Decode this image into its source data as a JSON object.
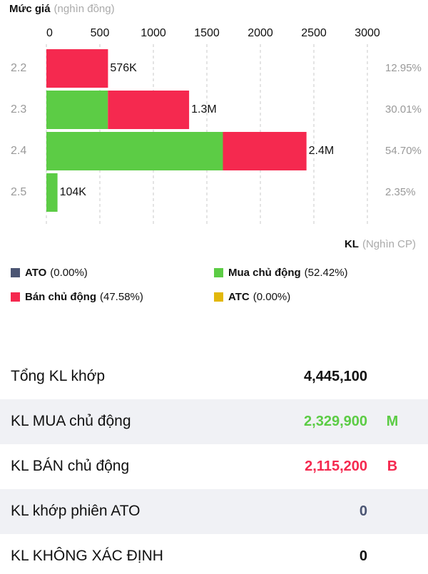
{
  "chart_data": {
    "type": "stacked-bar-horizontal",
    "y_label": {
      "title": "Mức giá",
      "unit": "(nghìn đồng)"
    },
    "x_label": {
      "title": "KL",
      "unit": "(Nghìn CP)"
    },
    "categories": [
      "2.2",
      "2.3",
      "2.4",
      "2.5"
    ],
    "xlim": [
      0,
      3000
    ],
    "xticks": [
      0,
      500,
      1000,
      1500,
      2000,
      2500,
      3000
    ],
    "grid": true,
    "series": [
      {
        "name": "ATO",
        "share_label": "(0.00%)",
        "color": "#4b5573",
        "values": [
          0,
          0,
          0,
          0
        ]
      },
      {
        "name": "Mua chủ động",
        "share_label": "(52.42%)",
        "color": "#5ccc45",
        "values": [
          0,
          575,
          1650,
          104
        ]
      },
      {
        "name": "Bán chủ động",
        "share_label": "(47.58%)",
        "color": "#f5294f",
        "values": [
          576,
          759,
          781,
          0
        ]
      },
      {
        "name": "ATC",
        "share_label": "(0.00%)",
        "color": "#e2b80b",
        "values": [
          0,
          0,
          0,
          0
        ]
      }
    ],
    "total_values": [
      576,
      1334,
      2431,
      104
    ],
    "total_value_labels": [
      "576K",
      "1.3M",
      "2.4M",
      "104K"
    ],
    "share_labels": [
      "12.95%",
      "30.01%",
      "54.70%",
      "2.35%"
    ]
  },
  "summary": {
    "rows": [
      {
        "label": "Tổng KL khớp",
        "value": "4,445,100",
        "color": "#111111"
      },
      {
        "label": "KL MUA chủ động",
        "value": "2,329,900",
        "suffix": "M",
        "color": "#5ccc45"
      },
      {
        "label": "KL BÁN chủ động",
        "value": "2,115,200",
        "suffix": "B",
        "color": "#f5294f"
      },
      {
        "label": "KL khớp phiên ATO",
        "value": "0",
        "color": "#4b5573"
      },
      {
        "label": "KL KHÔNG XÁC ĐỊNH",
        "value": "0",
        "color": "#111111"
      }
    ]
  }
}
